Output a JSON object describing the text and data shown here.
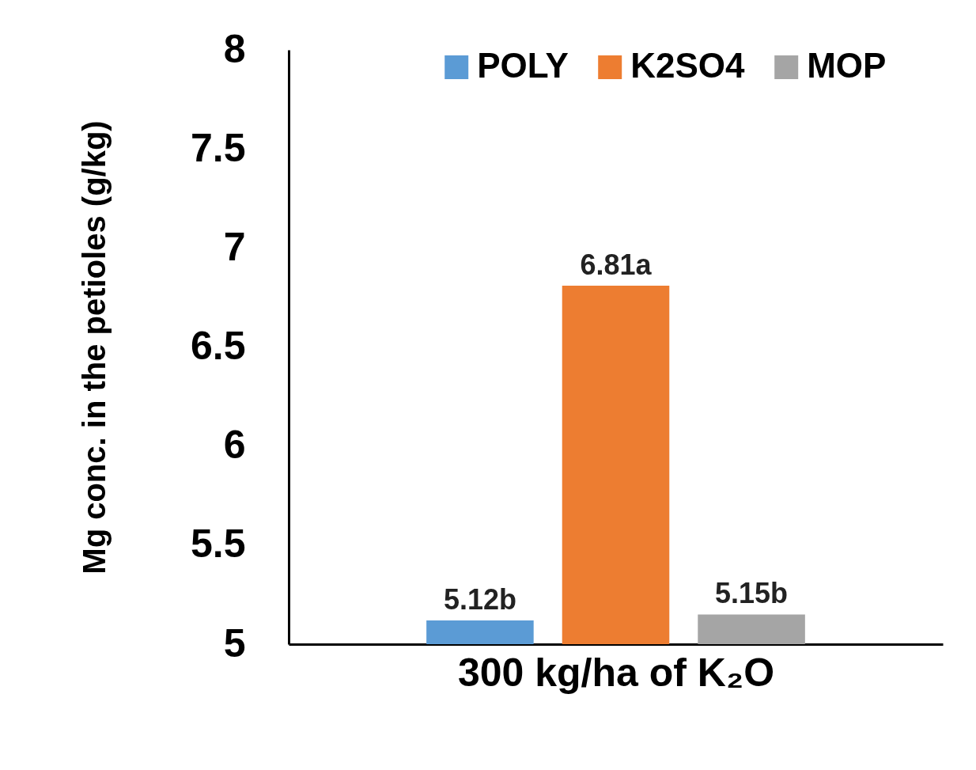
{
  "chart_data": {
    "type": "bar",
    "ylabel": "Mg conc. in the petioles (g/kg)",
    "xlabel": "300 kg/ha of K₂O",
    "categories": [
      null
    ],
    "series": [
      {
        "name": "POLY",
        "color": "#5b9bd5",
        "values": [
          5.12
        ],
        "value_labels": [
          "5.12b"
        ]
      },
      {
        "name": "K2SO4",
        "color": "#ed7d31",
        "values": [
          6.81
        ],
        "value_labels": [
          "6.81a"
        ]
      },
      {
        "name": "MOP",
        "color": "#a5a5a5",
        "values": [
          5.15
        ],
        "value_labels": [
          "5.15b"
        ]
      }
    ],
    "ylim": [
      5,
      8
    ],
    "yticks": [
      5,
      5.5,
      6,
      6.5,
      7,
      7.5,
      8
    ],
    "grid": false,
    "legend": "top"
  }
}
